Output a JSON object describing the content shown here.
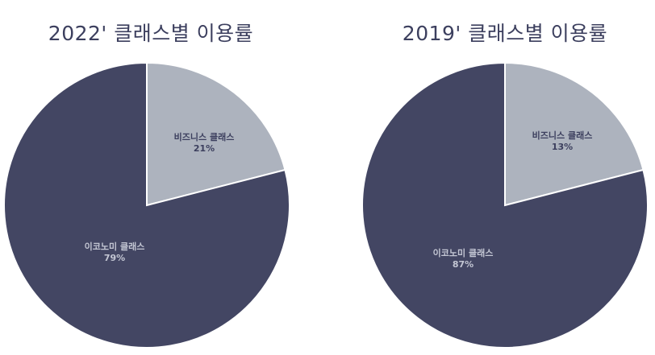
{
  "chart_data": [
    {
      "type": "pie",
      "title": "2022' 클래스별 이용률",
      "slices": [
        {
          "label": "비즈니스 클래스",
          "value": 21,
          "value_label": "21%",
          "color": "#adb3be",
          "label_color": "#3c3f5e"
        },
        {
          "label": "이코노미 클래스",
          "value": 79,
          "value_label": "79%",
          "color": "#434663",
          "label_color": "#c4c7d4"
        }
      ]
    },
    {
      "type": "pie",
      "title": "2019' 클래스별 이용률",
      "slices": [
        {
          "label": "비즈니스 클래스",
          "value": 13,
          "value_label": "13%",
          "color": "#adb3be",
          "label_color": "#3c3f5e"
        },
        {
          "label": "이코노미 클래스",
          "value": 87,
          "value_label": "87%",
          "color": "#434663",
          "label_color": "#c4c7d4"
        }
      ]
    }
  ]
}
